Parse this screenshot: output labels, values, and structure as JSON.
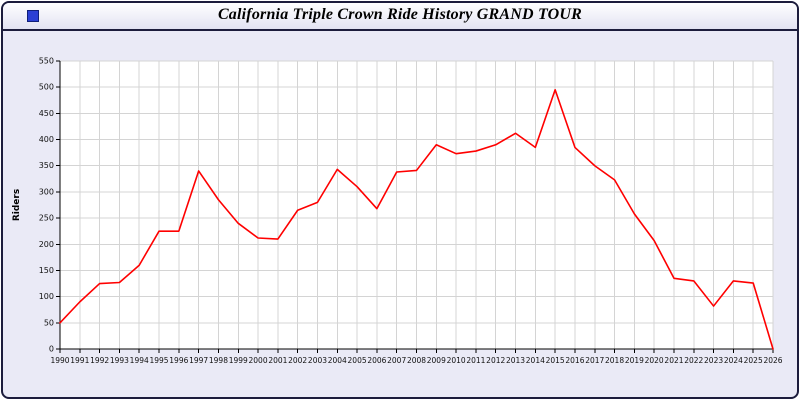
{
  "window": {
    "title": "California Triple Crown Ride History GRAND TOUR",
    "icon": "app-square-icon",
    "icon_color": "#2b3fd4",
    "frame_color": "#1c1c3c",
    "body_background": "#eaeaf6"
  },
  "chart_data": {
    "type": "line",
    "title": "California Triple Crown Ride History GRAND TOUR",
    "xlabel": "",
    "ylabel": "Riders",
    "ylim": [
      0,
      550
    ],
    "ytick_step": 50,
    "grid": true,
    "legend": "none",
    "line_color": "#ff0000",
    "grid_color": "#d4d4d4",
    "plot_background": "#ffffff",
    "categories": [
      "1990",
      "1991",
      "1992",
      "1993",
      "1994",
      "1995",
      "1996",
      "1997",
      "1998",
      "1999",
      "2000",
      "2001",
      "2002",
      "2003",
      "2004",
      "2005",
      "2006",
      "2007",
      "2008",
      "2009",
      "2010",
      "2011",
      "2012",
      "2013",
      "2014",
      "2015",
      "2016",
      "2017",
      "2018",
      "2019",
      "2020",
      "2021",
      "2022",
      "2023",
      "2024",
      "2025",
      "2026"
    ],
    "values": [
      50,
      90,
      125,
      127,
      160,
      225,
      225,
      340,
      285,
      240,
      212,
      210,
      265,
      280,
      343,
      310,
      268,
      338,
      341,
      390,
      373,
      378,
      390,
      412,
      385,
      495,
      385,
      350,
      323,
      258,
      207,
      135,
      130,
      82,
      130,
      126,
      0
    ]
  }
}
